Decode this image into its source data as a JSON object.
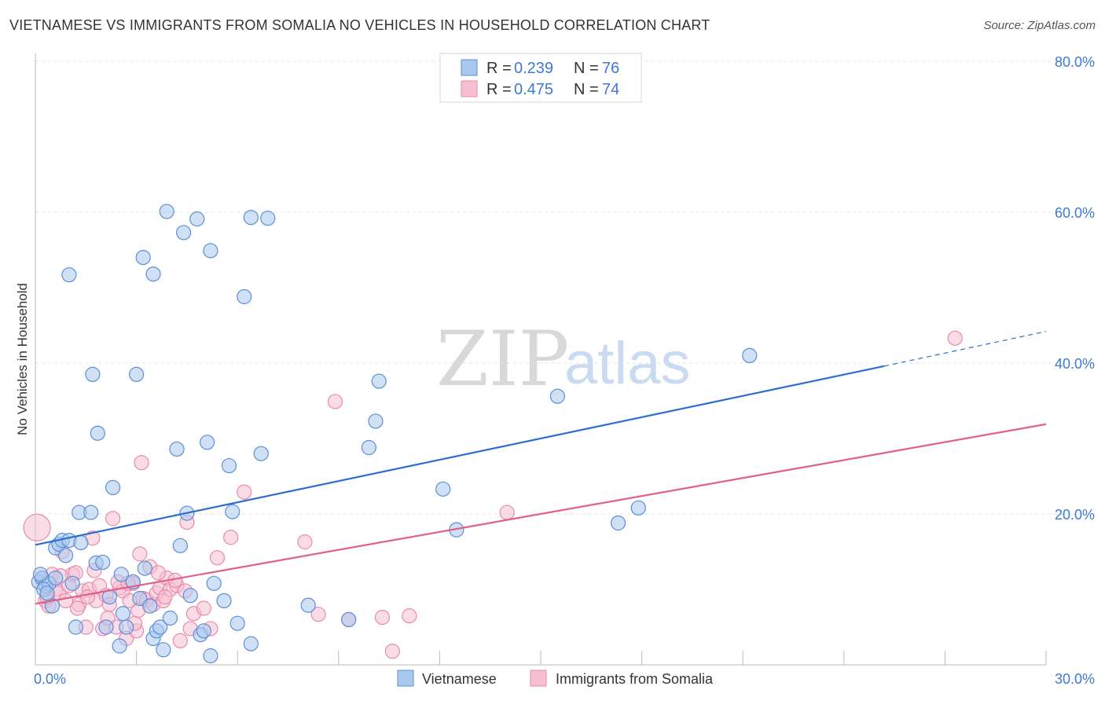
{
  "title": "VIETNAMESE VS IMMIGRANTS FROM SOMALIA NO VEHICLES IN HOUSEHOLD CORRELATION CHART",
  "source": "Source: ZipAtlas.com",
  "watermark": {
    "zip": "ZIP",
    "atlas": "atlas"
  },
  "colors": {
    "blue_fill": "#a9c8ee",
    "blue_stroke": "#5b8fd6",
    "blue_line": "#2b6fce",
    "pink_fill": "#f6bfd1",
    "pink_stroke": "#e98aab",
    "pink_line": "#e0608c",
    "grid": "#e0e0e0",
    "axis_text": "#3d7ad6"
  },
  "legend": {
    "rows": [
      {
        "r_label": "R = ",
        "r_value": "0.239",
        "n_label": "N = ",
        "n_value": "76"
      },
      {
        "r_label": "R = ",
        "r_value": "0.475",
        "n_label": "N = ",
        "n_value": "74"
      }
    ]
  },
  "chart_data": {
    "type": "scatter",
    "title": "VIETNAMESE VS IMMIGRANTS FROM SOMALIA NO VEHICLES IN HOUSEHOLD CORRELATION CHART",
    "xlabel": "",
    "ylabel": "No Vehicles in Household",
    "xlim": [
      0,
      30
    ],
    "ylim": [
      0,
      80
    ],
    "x_tick_labels": [
      "0.0%",
      "30.0%"
    ],
    "y_tick_labels": [
      "20.0%",
      "40.0%",
      "60.0%",
      "80.0%"
    ],
    "y_ticks": [
      20,
      40,
      60,
      80
    ],
    "x_minor_ticks": [
      3,
      6,
      9,
      12,
      15,
      18,
      21,
      24,
      27,
      30
    ],
    "grid": true,
    "series": [
      {
        "name": "Vietnamese",
        "color": "#5b8fd6",
        "trend": {
          "x0": 0,
          "y0": 15.9,
          "x1": 25.2,
          "y1": 39.6,
          "dash_to_x": 30,
          "dash_to_y": 44.2
        },
        "points": [
          [
            0.1,
            11.0
          ],
          [
            0.2,
            11.5
          ],
          [
            0.3,
            10.5
          ],
          [
            0.4,
            10.8
          ],
          [
            0.5,
            7.8
          ],
          [
            0.6,
            15.5
          ],
          [
            0.7,
            16.0
          ],
          [
            0.8,
            16.5
          ],
          [
            0.9,
            14.5
          ],
          [
            1.0,
            16.5
          ],
          [
            1.1,
            10.8
          ],
          [
            1.2,
            5.0
          ],
          [
            1.3,
            20.2
          ],
          [
            1.35,
            16.2
          ],
          [
            1.0,
            51.7
          ],
          [
            1.65,
            20.2
          ],
          [
            1.7,
            38.5
          ],
          [
            1.85,
            30.7
          ],
          [
            1.8,
            13.5
          ],
          [
            2.0,
            13.6
          ],
          [
            2.1,
            5.0
          ],
          [
            2.2,
            9.0
          ],
          [
            2.3,
            23.5
          ],
          [
            2.5,
            2.5
          ],
          [
            2.55,
            12.0
          ],
          [
            2.6,
            6.8
          ],
          [
            2.7,
            5.0
          ],
          [
            2.9,
            11.0
          ],
          [
            3.0,
            38.5
          ],
          [
            3.1,
            8.8
          ],
          [
            3.2,
            54.0
          ],
          [
            3.25,
            12.8
          ],
          [
            3.4,
            7.8
          ],
          [
            3.5,
            3.5
          ],
          [
            3.5,
            51.8
          ],
          [
            3.6,
            4.5
          ],
          [
            3.7,
            5.0
          ],
          [
            3.8,
            2.0
          ],
          [
            3.9,
            60.1
          ],
          [
            4.0,
            6.2
          ],
          [
            4.2,
            28.6
          ],
          [
            4.3,
            15.8
          ],
          [
            4.4,
            57.3
          ],
          [
            4.5,
            20.1
          ],
          [
            4.6,
            9.2
          ],
          [
            4.8,
            59.1
          ],
          [
            4.9,
            4.0
          ],
          [
            5.0,
            4.5
          ],
          [
            5.1,
            29.5
          ],
          [
            5.2,
            54.9
          ],
          [
            5.2,
            1.2
          ],
          [
            5.3,
            10.8
          ],
          [
            5.6,
            8.5
          ],
          [
            5.75,
            26.4
          ],
          [
            5.85,
            20.3
          ],
          [
            6.0,
            5.5
          ],
          [
            6.2,
            48.8
          ],
          [
            6.4,
            59.3
          ],
          [
            6.4,
            2.8
          ],
          [
            6.7,
            28.0
          ],
          [
            6.9,
            59.2
          ],
          [
            8.1,
            7.9
          ],
          [
            9.3,
            6.0
          ],
          [
            9.9,
            28.8
          ],
          [
            10.1,
            32.3
          ],
          [
            10.2,
            37.6
          ],
          [
            12.1,
            23.3
          ],
          [
            12.5,
            17.9
          ],
          [
            15.5,
            35.6
          ],
          [
            17.3,
            18.8
          ],
          [
            17.9,
            20.8
          ],
          [
            21.2,
            41.0
          ],
          [
            0.15,
            12.0
          ],
          [
            0.25,
            10.0
          ],
          [
            0.35,
            9.5
          ],
          [
            0.6,
            11.5
          ]
        ]
      },
      {
        "name": "Immigrants from Somalia",
        "color": "#e98aab",
        "trend": {
          "x0": 0,
          "y0": 8.1,
          "x1": 30,
          "y1": 31.9
        },
        "points": [
          [
            0.05,
            18.2
          ],
          [
            0.2,
            11.5
          ],
          [
            0.3,
            8.5
          ],
          [
            0.4,
            7.8
          ],
          [
            0.5,
            12.0
          ],
          [
            0.6,
            10.0
          ],
          [
            0.7,
            9.5
          ],
          [
            0.8,
            15.0
          ],
          [
            0.9,
            8.5
          ],
          [
            1.0,
            10.5
          ],
          [
            1.1,
            12.0
          ],
          [
            1.2,
            12.2
          ],
          [
            1.3,
            8.0
          ],
          [
            1.4,
            9.8
          ],
          [
            1.5,
            5.0
          ],
          [
            1.6,
            10.0
          ],
          [
            1.7,
            16.8
          ],
          [
            1.8,
            8.5
          ],
          [
            1.9,
            10.5
          ],
          [
            2.0,
            4.8
          ],
          [
            2.1,
            9.2
          ],
          [
            2.2,
            8.0
          ],
          [
            2.3,
            19.4
          ],
          [
            2.4,
            5.0
          ],
          [
            2.5,
            10.2
          ],
          [
            2.6,
            9.8
          ],
          [
            2.7,
            3.5
          ],
          [
            2.8,
            8.5
          ],
          [
            2.9,
            10.8
          ],
          [
            3.0,
            4.5
          ],
          [
            3.1,
            14.7
          ],
          [
            3.2,
            8.8
          ],
          [
            3.3,
            8.6
          ],
          [
            3.4,
            13.0
          ],
          [
            3.5,
            8.0
          ],
          [
            3.6,
            9.5
          ],
          [
            3.7,
            10.2
          ],
          [
            3.8,
            8.5
          ],
          [
            3.9,
            11.5
          ],
          [
            4.0,
            10.0
          ],
          [
            4.2,
            10.5
          ],
          [
            4.3,
            3.2
          ],
          [
            4.5,
            18.9
          ],
          [
            4.6,
            4.8
          ],
          [
            4.7,
            6.8
          ],
          [
            5.0,
            7.5
          ],
          [
            5.2,
            4.8
          ],
          [
            5.4,
            14.2
          ],
          [
            5.8,
            16.9
          ],
          [
            6.2,
            22.9
          ],
          [
            8.0,
            16.3
          ],
          [
            8.4,
            6.7
          ],
          [
            8.9,
            34.9
          ],
          [
            9.3,
            6.0
          ],
          [
            10.3,
            6.3
          ],
          [
            10.6,
            1.8
          ],
          [
            11.1,
            6.5
          ],
          [
            14.0,
            20.2
          ],
          [
            27.3,
            43.3
          ],
          [
            3.15,
            26.8
          ],
          [
            1.75,
            12.5
          ],
          [
            2.45,
            11.0
          ],
          [
            3.65,
            12.2
          ],
          [
            0.35,
            9.0
          ],
          [
            1.25,
            7.5
          ],
          [
            2.15,
            6.2
          ],
          [
            3.05,
            7.2
          ],
          [
            3.85,
            9.0
          ],
          [
            4.15,
            11.2
          ],
          [
            2.75,
            10.8
          ],
          [
            1.55,
            9.0
          ],
          [
            0.75,
            11.8
          ],
          [
            4.45,
            9.8
          ],
          [
            2.95,
            5.5
          ]
        ]
      }
    ]
  },
  "bottom_legend": {
    "items": [
      "Vietnamese",
      "Immigrants from Somalia"
    ]
  }
}
